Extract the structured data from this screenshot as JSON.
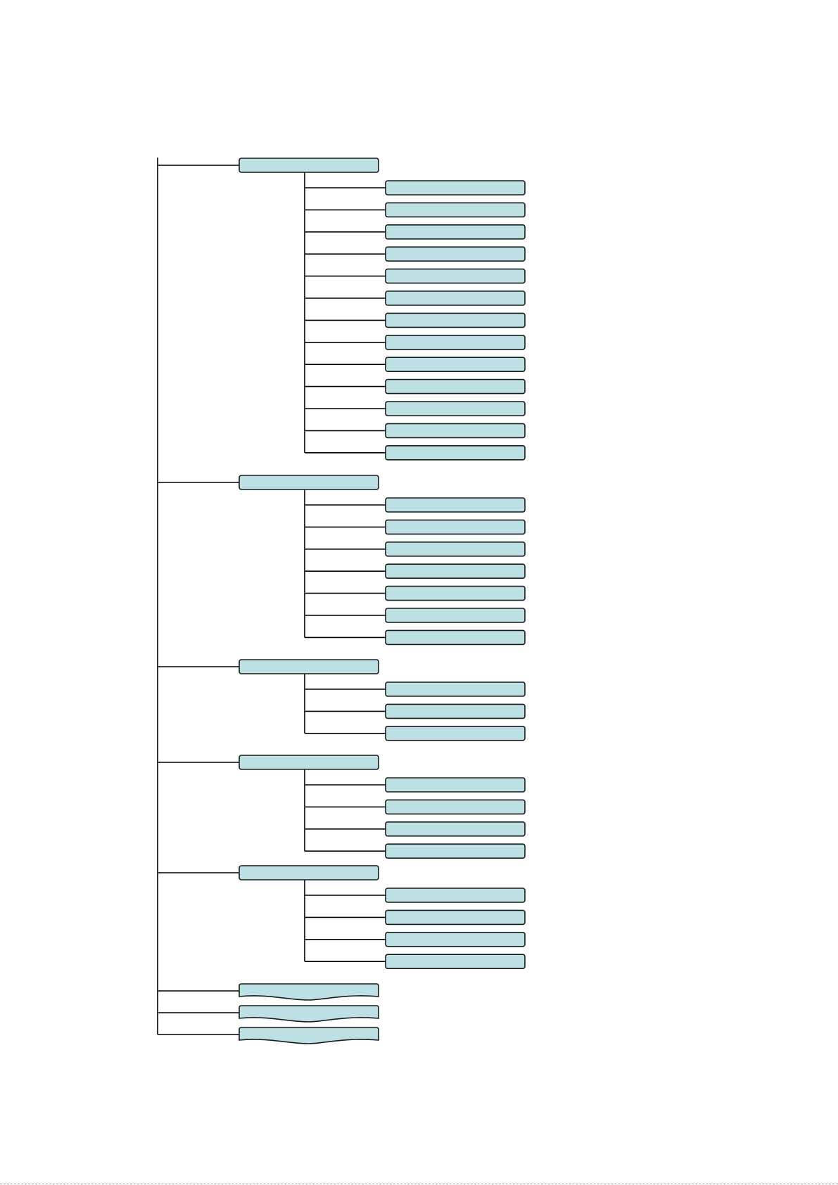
{
  "diagram": {
    "type": "tree",
    "colors": {
      "node_fill": "#BCE0E3",
      "node_stroke": "#1a1a1a",
      "line": "#000000",
      "page_edge": "#9a9a9a"
    },
    "branches": [
      {
        "label": "",
        "children": [
          "",
          "",
          "",
          "",
          "",
          "",
          "",
          "",
          "",
          "",
          "",
          "",
          ""
        ]
      },
      {
        "label": "",
        "children": [
          "",
          "",
          "",
          "",
          "",
          "",
          ""
        ]
      },
      {
        "label": "",
        "children": [
          "",
          "",
          ""
        ]
      },
      {
        "label": "",
        "children": [
          "",
          "",
          "",
          ""
        ]
      },
      {
        "label": "",
        "children": [
          "",
          "",
          "",
          ""
        ]
      },
      {
        "label": "",
        "children": [],
        "shape": "wave"
      },
      {
        "label": "",
        "children": [],
        "shape": "wave"
      },
      {
        "label": "",
        "children": [],
        "shape": "wave"
      }
    ]
  }
}
